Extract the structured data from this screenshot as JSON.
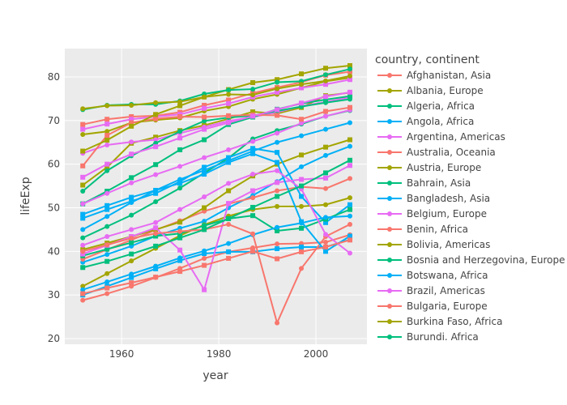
{
  "chart_data": {
    "type": "line",
    "xlabel": "year",
    "ylabel": "lifeExp",
    "xlim": [
      1948.3,
      2010.5
    ],
    "ylim": [
      18.7,
      86.5
    ],
    "xticks": [
      1960,
      1980,
      2000
    ],
    "yticks": [
      20,
      30,
      40,
      50,
      60,
      70,
      80
    ],
    "grid": true,
    "legend_title": "country, continent",
    "legend_placement": "right",
    "palette": [
      "#F8766D",
      "#A3A500",
      "#00BF7D",
      "#00B0F6",
      "#E76BF3"
    ],
    "x": [
      1952,
      1957,
      1962,
      1967,
      1972,
      1977,
      1982,
      1987,
      1992,
      1997,
      2002,
      2007
    ],
    "series": [
      {
        "name": "Afghanistan, Asia",
        "values": [
          28.8,
          30.3,
          32.0,
          34.0,
          36.1,
          38.4,
          39.9,
          40.8,
          41.7,
          41.8,
          42.1,
          43.8
        ]
      },
      {
        "name": "Albania, Europe",
        "values": [
          55.2,
          59.3,
          64.8,
          66.2,
          67.7,
          68.9,
          70.4,
          72.0,
          71.6,
          73.0,
          75.7,
          76.4
        ]
      },
      {
        "name": "Algeria, Africa",
        "values": [
          43.1,
          45.7,
          48.3,
          51.4,
          54.5,
          58.0,
          61.4,
          65.8,
          67.7,
          69.2,
          71.0,
          72.3
        ]
      },
      {
        "name": "Angola, Africa",
        "values": [
          30.0,
          32.0,
          34.0,
          36.0,
          37.9,
          39.5,
          39.9,
          39.9,
          40.6,
          41.0,
          41.0,
          42.7
        ]
      },
      {
        "name": "Argentina, Americas",
        "values": [
          62.5,
          64.4,
          65.1,
          65.6,
          67.1,
          68.5,
          69.9,
          70.8,
          71.9,
          73.3,
          74.3,
          75.3
        ]
      },
      {
        "name": "Australia, Oceania",
        "values": [
          69.1,
          70.3,
          70.9,
          71.1,
          71.9,
          73.5,
          74.7,
          76.3,
          77.6,
          78.8,
          80.4,
          81.2
        ]
      },
      {
        "name": "Austria, Europe",
        "values": [
          66.8,
          67.5,
          69.5,
          70.1,
          70.6,
          72.2,
          73.2,
          74.9,
          76.0,
          77.5,
          79.0,
          79.8
        ]
      },
      {
        "name": "Bahrain, Asia",
        "values": [
          50.9,
          53.8,
          56.9,
          59.9,
          63.3,
          65.6,
          69.1,
          70.8,
          72.6,
          73.9,
          74.8,
          75.6
        ]
      },
      {
        "name": "Bangladesh, Asia",
        "values": [
          37.5,
          39.3,
          41.2,
          43.5,
          45.3,
          46.9,
          50.0,
          52.8,
          56.0,
          59.4,
          62.0,
          64.1
        ]
      },
      {
        "name": "Belgium, Europe",
        "values": [
          68.0,
          69.2,
          70.3,
          70.9,
          71.4,
          72.8,
          73.9,
          75.4,
          76.5,
          77.5,
          78.3,
          79.4
        ]
      },
      {
        "name": "Benin, Africa",
        "values": [
          38.2,
          40.4,
          42.6,
          44.9,
          47.0,
          49.2,
          50.9,
          52.3,
          53.9,
          54.8,
          54.4,
          56.7
        ]
      },
      {
        "name": "Bolivia, Americas",
        "values": [
          40.4,
          41.9,
          43.4,
          45.0,
          46.7,
          50.0,
          53.9,
          57.3,
          60.0,
          62.1,
          63.9,
          65.6
        ]
      },
      {
        "name": "Bosnia and Herzegovina, Europe",
        "values": [
          53.8,
          58.5,
          61.9,
          64.8,
          67.5,
          69.9,
          70.7,
          71.1,
          72.2,
          73.2,
          74.1,
          74.9
        ]
      },
      {
        "name": "Botswana, Africa",
        "values": [
          47.6,
          49.6,
          51.5,
          53.3,
          56.0,
          59.3,
          61.5,
          63.6,
          62.7,
          52.6,
          46.6,
          50.7
        ]
      },
      {
        "name": "Brazil, Americas",
        "values": [
          50.9,
          53.3,
          55.7,
          57.6,
          59.5,
          61.5,
          63.3,
          65.2,
          67.1,
          69.4,
          71.0,
          72.4
        ]
      },
      {
        "name": "Bulgaria, Europe",
        "values": [
          59.6,
          66.6,
          69.5,
          70.4,
          70.9,
          70.8,
          71.1,
          71.3,
          71.2,
          70.3,
          72.1,
          73.0
        ]
      },
      {
        "name": "Burkina Faso, Africa",
        "values": [
          32.0,
          34.9,
          37.8,
          40.7,
          43.6,
          46.1,
          48.1,
          49.6,
          50.3,
          50.3,
          50.7,
          52.3
        ]
      },
      {
        "name": "Burundi. Africa",
        "values": [
          39.0,
          40.5,
          42.0,
          43.5,
          44.1,
          45.9,
          47.5,
          48.2,
          44.7,
          45.3,
          47.4,
          49.6
        ]
      },
      {
        "values": [
          31.2,
          33.0,
          34.8,
          36.6,
          38.5,
          40.1,
          41.8,
          43.8,
          45.5,
          46.5,
          47.8,
          48.1
        ]
      },
      {
        "values": [
          39.4,
          41.4,
          43.4,
          45.4,
          40.3,
          31.2,
          51.0,
          53.9,
          55.8,
          56.5,
          56.8,
          59.7
        ]
      },
      {
        "values": [
          40.0,
          41.5,
          43.0,
          44.1,
          44.6,
          45.0,
          46.2,
          44.0,
          23.6,
          36.1,
          43.4,
          46.2
        ]
      },
      {
        "values": [
          63.0,
          65.5,
          68.7,
          71.4,
          73.4,
          75.4,
          77.1,
          78.7,
          79.4,
          80.7,
          82.0,
          82.6
        ]
      },
      {
        "values": [
          72.5,
          73.5,
          73.7,
          73.7,
          74.5,
          76.1,
          77.0,
          77.2,
          78.8,
          79.0,
          80.5,
          81.8
        ]
      },
      {
        "values": [
          48.5,
          50.5,
          52.4,
          54.0,
          55.6,
          57.7,
          60.4,
          62.4,
          60.4,
          46.8,
          40.0,
          43.5
        ]
      },
      {
        "values": [
          41.4,
          43.4,
          45.0,
          46.6,
          49.6,
          52.5,
          55.6,
          57.7,
          58.5,
          54.3,
          43.9,
          39.6
        ]
      },
      {
        "values": [
          30.3,
          31.6,
          32.8,
          34.1,
          35.4,
          36.8,
          38.4,
          40.0,
          38.3,
          39.9,
          41.0,
          42.6
        ]
      },
      {
        "values": [
          72.7,
          73.4,
          73.5,
          74.1,
          74.3,
          75.4,
          76.0,
          75.9,
          77.3,
          78.3,
          79.1,
          80.2
        ]
      },
      {
        "values": [
          36.3,
          37.7,
          39.4,
          41.2,
          43.1,
          45.0,
          47.5,
          50.1,
          52.6,
          55.0,
          58.0,
          60.9
        ]
      },
      {
        "values": [
          45.0,
          48.0,
          51.2,
          54.0,
          56.5,
          58.6,
          60.8,
          63.0,
          65.0,
          66.5,
          68.0,
          69.5
        ]
      },
      {
        "values": [
          57.0,
          60.0,
          62.3,
          64.0,
          66.0,
          68.0,
          69.5,
          71.0,
          72.5,
          74.0,
          75.5,
          76.5
        ]
      }
    ]
  }
}
